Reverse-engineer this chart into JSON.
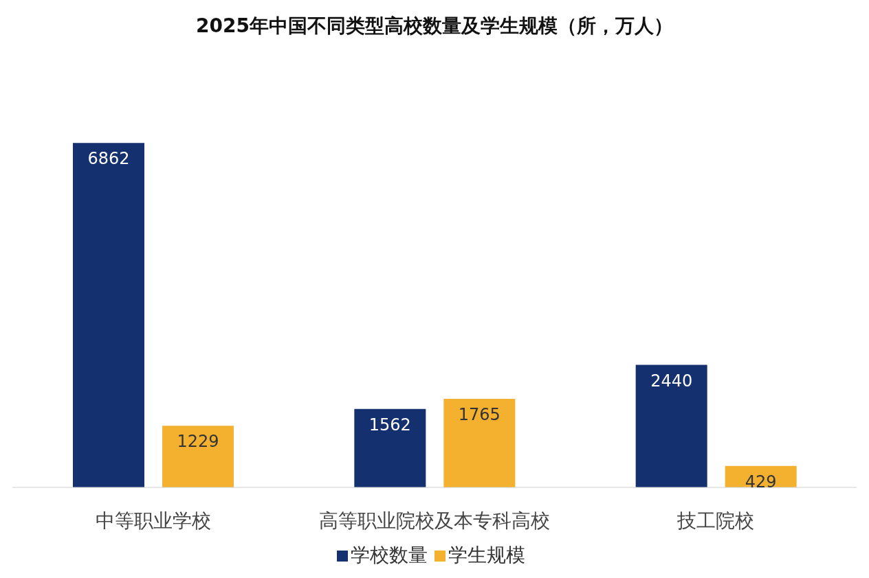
{
  "chart_data": {
    "type": "bar",
    "title": "2025年中国不同类型高校数量及学生规模（所，万人）",
    "categories": [
      "中等职业学校",
      "高等职业院校及本专科高校",
      "技工院校"
    ],
    "series": [
      {
        "name": "学校数量",
        "color": "#14306e",
        "values": [
          6862,
          1562,
          2440
        ]
      },
      {
        "name": "学生规模",
        "color": "#f4b02f",
        "values": [
          1229,
          1765,
          429
        ]
      }
    ],
    "data_labels": true,
    "legend": "bottom",
    "grid": false
  }
}
